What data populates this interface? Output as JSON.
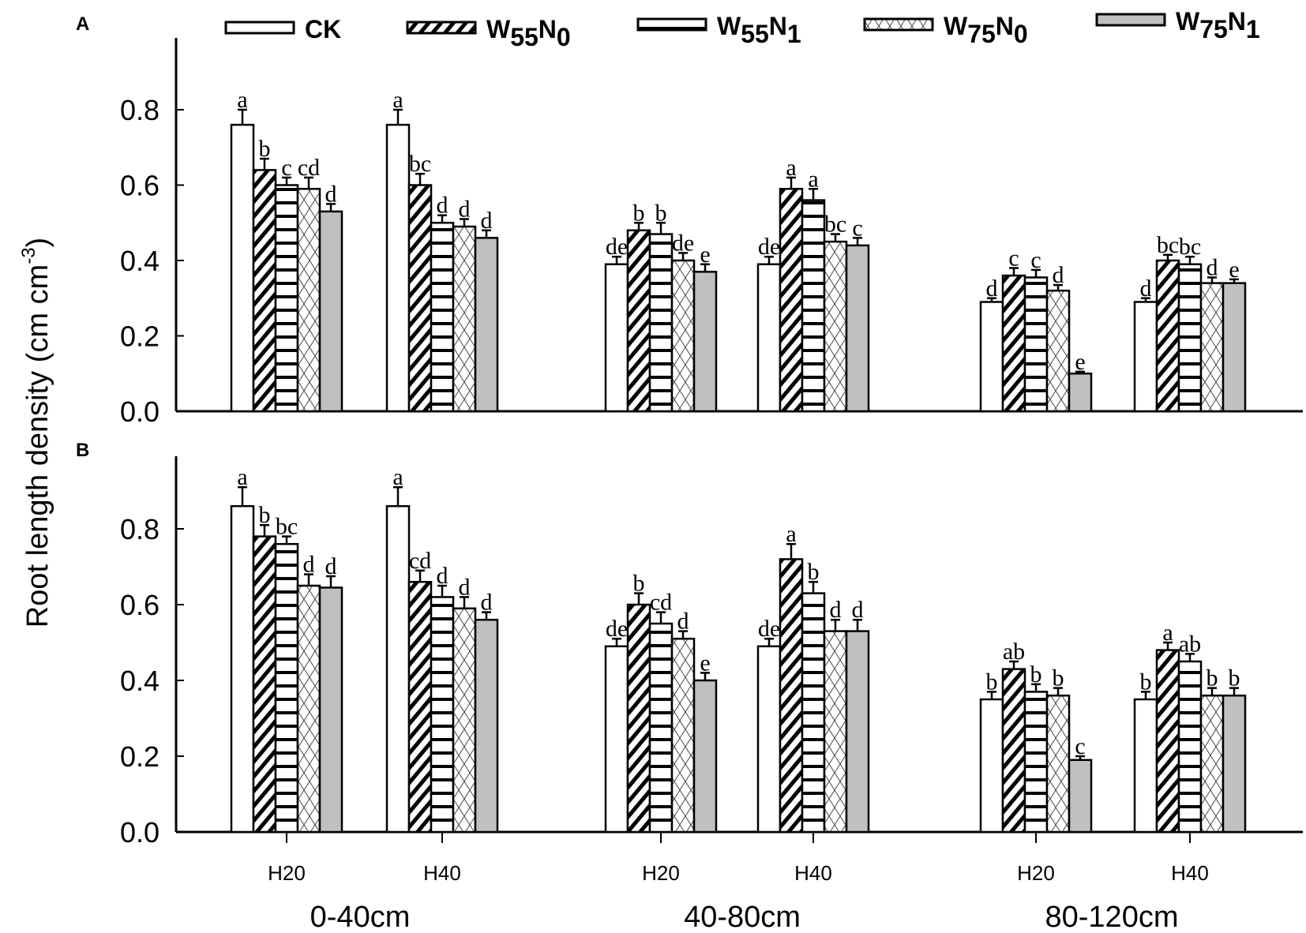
{
  "chart_data": {
    "type": "bar",
    "ylabel": "Root length density (cm cm",
    "ylabel_sup": "-3",
    "ylabel_close": ")",
    "ylim": [
      0,
      1.0
    ],
    "yticks": [
      "0.0",
      "0.2",
      "0.4",
      "0.6",
      "0.8"
    ],
    "legend": [
      {
        "name": "CK",
        "base": "CK",
        "sub1": "",
        "sub2": "",
        "pattern": "white"
      },
      {
        "name": "W55N0",
        "base": "W",
        "sub1": "55",
        "mid": "N",
        "sub2": "0",
        "pattern": "diagonal"
      },
      {
        "name": "W55N1",
        "base": "W",
        "sub1": "55",
        "mid": "N",
        "sub2": "1",
        "pattern": "horizontal"
      },
      {
        "name": "W75N0",
        "base": "W",
        "sub1": "75",
        "mid": "N",
        "sub2": "0",
        "pattern": "cross"
      },
      {
        "name": "W75N1",
        "base": "W",
        "sub1": "75",
        "mid": "N",
        "sub2": "1",
        "pattern": "gray"
      }
    ],
    "legend_placement": "top",
    "groups": [
      "H20",
      "H40",
      "H20",
      "H40",
      "H20",
      "H40"
    ],
    "depths": [
      "0-40cm",
      "40-80cm",
      "80-120cm"
    ],
    "colors": {
      "gray": "#c0c0c0",
      "line": "#000000"
    },
    "panels": [
      {
        "label": "A",
        "values": [
          [
            0.76,
            0.64,
            0.6,
            0.59,
            0.53
          ],
          [
            0.76,
            0.6,
            0.5,
            0.49,
            0.46
          ],
          [
            0.39,
            0.48,
            0.47,
            0.4,
            0.37
          ],
          [
            0.39,
            0.59,
            0.56,
            0.45,
            0.44
          ],
          [
            0.29,
            0.36,
            0.355,
            0.32,
            0.1
          ],
          [
            0.29,
            0.4,
            0.39,
            0.34,
            0.34
          ]
        ],
        "errors": [
          [
            0.04,
            0.03,
            0.02,
            0.03,
            0.02
          ],
          [
            0.04,
            0.03,
            0.02,
            0.02,
            0.02
          ],
          [
            0.02,
            0.02,
            0.03,
            0.02,
            0.02
          ],
          [
            0.02,
            0.03,
            0.03,
            0.02,
            0.02
          ],
          [
            0.01,
            0.02,
            0.02,
            0.015,
            0.005
          ],
          [
            0.01,
            0.015,
            0.02,
            0.015,
            0.01
          ]
        ],
        "letters": [
          [
            "a",
            "b",
            "c",
            "cd",
            "d"
          ],
          [
            "a",
            "bc",
            "d",
            "d",
            "d"
          ],
          [
            "de",
            "b",
            "b",
            "de",
            "e"
          ],
          [
            "de",
            "a",
            "a",
            "bc",
            "c"
          ],
          [
            "d",
            "c",
            "c",
            "d",
            "e"
          ],
          [
            "d",
            "bc",
            "bc",
            "d",
            "e"
          ]
        ]
      },
      {
        "label": "B",
        "values": [
          [
            0.86,
            0.78,
            0.76,
            0.65,
            0.645
          ],
          [
            0.86,
            0.66,
            0.62,
            0.59,
            0.56
          ],
          [
            0.49,
            0.6,
            0.55,
            0.51,
            0.4
          ],
          [
            0.49,
            0.72,
            0.63,
            0.53,
            0.53
          ],
          [
            0.35,
            0.43,
            0.37,
            0.36,
            0.19
          ],
          [
            0.35,
            0.48,
            0.45,
            0.36,
            0.36
          ]
        ],
        "errors": [
          [
            0.05,
            0.03,
            0.02,
            0.03,
            0.03
          ],
          [
            0.05,
            0.03,
            0.03,
            0.03,
            0.02
          ],
          [
            0.02,
            0.03,
            0.03,
            0.02,
            0.02
          ],
          [
            0.02,
            0.04,
            0.03,
            0.03,
            0.03
          ],
          [
            0.02,
            0.02,
            0.02,
            0.02,
            0.01
          ],
          [
            0.02,
            0.02,
            0.02,
            0.02,
            0.02
          ]
        ],
        "letters": [
          [
            "a",
            "b",
            "bc",
            "d",
            "d"
          ],
          [
            "a",
            "cd",
            "d",
            "d",
            "d"
          ],
          [
            "de",
            "b",
            "cd",
            "d",
            "e"
          ],
          [
            "de",
            "a",
            "b",
            "d",
            "d"
          ],
          [
            "b",
            "ab",
            "b",
            "b",
            "c"
          ],
          [
            "b",
            "a",
            "ab",
            "b",
            "b"
          ]
        ]
      }
    ]
  }
}
